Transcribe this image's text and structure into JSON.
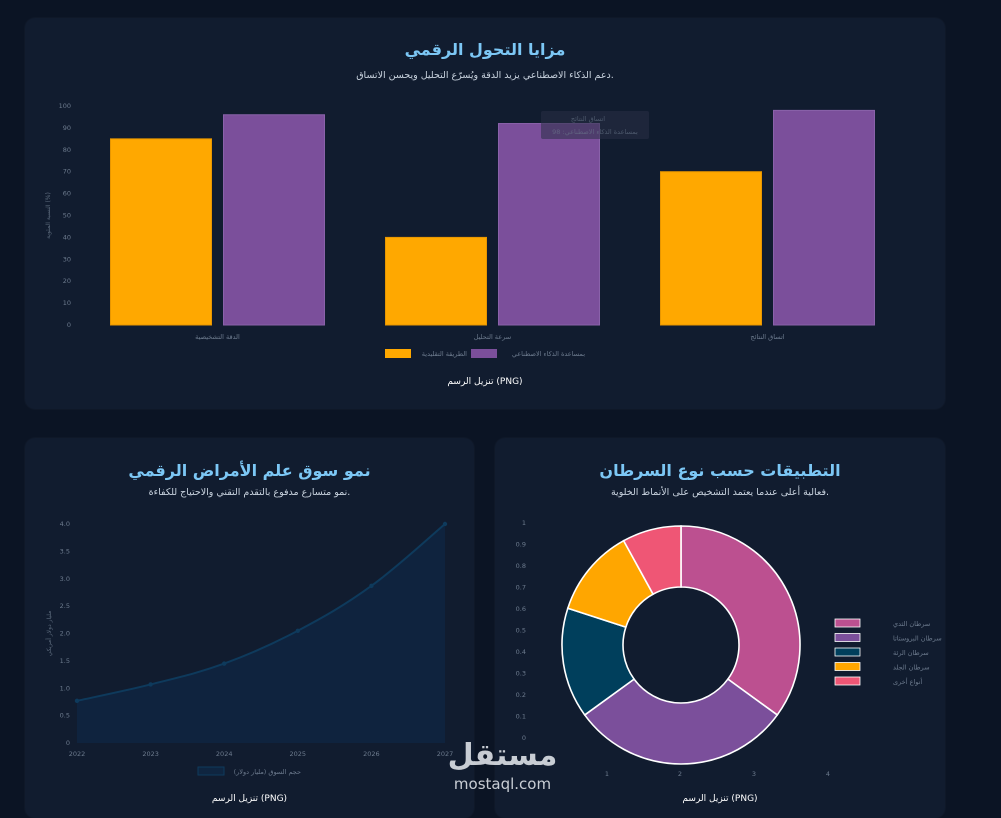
{
  "top_card": {
    "title": "مزايا التحول الرقمي",
    "subtitle": "دعم الذكاء الاصطناعي يزيد الدقة ويُسرّع التحليل ويحسن الاتساق.",
    "download": "تنزيل الرسم (PNG)"
  },
  "left_card": {
    "title": "نمو سوق علم الأمراض الرقمي",
    "subtitle": "نمو متسارع مدفوع بالتقدم التقني والاحتياج للكفاءة.",
    "download": "تنزيل الرسم (PNG)"
  },
  "right_card": {
    "title": "التطبيقات حسب نوع السرطان",
    "subtitle": "فعالية أعلى عندما يعتمد التشخيص على الأنماط الخلوية.",
    "download": "تنزيل الرسم (PNG)"
  },
  "watermark": {
    "arabic": "مستقل",
    "latin": "mostaql.com"
  },
  "chart_data": [
    {
      "type": "bar",
      "categories": [
        "الدقة التشخيصية",
        "سرعة التحليل",
        "اتساق النتائج"
      ],
      "series": [
        {
          "name": "الطريقة التقليدية",
          "color": "#ffa800",
          "values": [
            85,
            40,
            70
          ]
        },
        {
          "name": "بمساعدة الذكاء الاصطناعي",
          "color": "#7b4f9b",
          "values": [
            96,
            92,
            98
          ]
        }
      ],
      "ylabel": "النسبة المئوية (%)",
      "ylim": [
        0,
        100
      ],
      "yticks": [
        0,
        10,
        20,
        30,
        40,
        50,
        60,
        70,
        80,
        90,
        100
      ],
      "legend": "bottom",
      "tooltip": {
        "title": "اتساق النتائج",
        "body": "بمساعدة الذكاء الاصطناعي: 98"
      }
    },
    {
      "type": "area",
      "x": [
        "2022",
        "2023",
        "2024",
        "2025",
        "2026",
        "2027"
      ],
      "series": [
        {
          "name": "حجم السوق (مليار دولار)",
          "color": "#0e3a5c",
          "values": [
            0.77,
            1.07,
            1.45,
            2.05,
            2.87,
            4.0
          ]
        }
      ],
      "ylabel": "مليار دولار أمريكي",
      "ylim": [
        0,
        4.0
      ],
      "yticks": [
        "0",
        "0.5",
        "1.0",
        "1.5",
        "2.0",
        "2.5",
        "3.0",
        "3.5",
        "4.0"
      ],
      "legend": "bottom"
    },
    {
      "type": "pie",
      "donut": true,
      "labels": [
        "سرطان الثدي",
        "سرطان البروستاتا",
        "سرطان الرئة",
        "سرطان الجلد",
        "أنواع أخرى"
      ],
      "values": [
        35,
        30,
        15,
        12,
        8
      ],
      "colors": [
        "#bc5090",
        "#7b4f9b",
        "#003f5c",
        "#ffa600",
        "#ef5675"
      ],
      "legend": "right",
      "y_ticks": [
        "0",
        "0.1",
        "0.2",
        "0.3",
        "0.4",
        "0.5",
        "0.6",
        "0.7",
        "0.8",
        "0.9",
        "1"
      ],
      "x_ticks": [
        "1",
        "2",
        "3",
        "4"
      ]
    }
  ]
}
